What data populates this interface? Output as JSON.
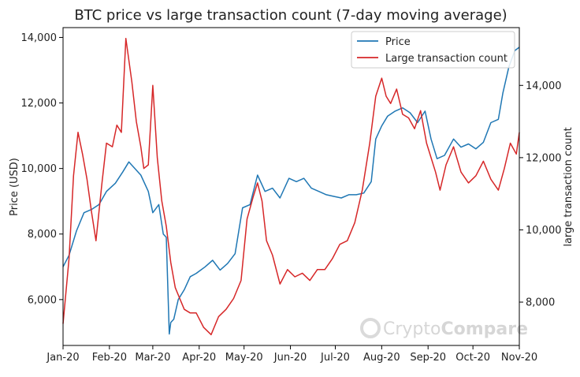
{
  "chart_data": {
    "type": "line",
    "title": "BTC price vs large transaction count (7-day moving average)",
    "ylabel": "Price (USD)",
    "y2label": "large transaction count",
    "ylim": [
      4600,
      14300
    ],
    "y2lim": [
      6800,
      15600
    ],
    "x_ticks": [
      "Jan-20",
      "Feb-20",
      "Mar-20",
      "Apr-20",
      "May-20",
      "Jun-20",
      "Jul-20",
      "Aug-20",
      "Sep-20",
      "Oct-20",
      "Nov-20"
    ],
    "y_ticks": [
      6000,
      8000,
      10000,
      12000,
      14000
    ],
    "y_tick_labels": [
      "6,000",
      "8,000",
      "10,000",
      "12,000",
      "14,000"
    ],
    "y2_ticks": [
      8000,
      10000,
      12000,
      14000
    ],
    "y2_tick_labels": [
      "8,000",
      "10,000",
      "12,000",
      "14,000"
    ],
    "grid": false,
    "legend_position": "top-right",
    "series": [
      {
        "name": "Price",
        "axis": "left",
        "color": "#1f77b4",
        "x": [
          "2020-01-01",
          "2020-01-05",
          "2020-01-10",
          "2020-01-15",
          "2020-01-20",
          "2020-01-25",
          "2020-01-30",
          "2020-02-05",
          "2020-02-10",
          "2020-02-14",
          "2020-02-18",
          "2020-02-22",
          "2020-02-27",
          "2020-03-01",
          "2020-03-05",
          "2020-03-08",
          "2020-03-10",
          "2020-03-12",
          "2020-03-13",
          "2020-03-15",
          "2020-03-18",
          "2020-03-22",
          "2020-03-26",
          "2020-03-30",
          "2020-04-05",
          "2020-04-10",
          "2020-04-15",
          "2020-04-20",
          "2020-04-25",
          "2020-04-30",
          "2020-05-05",
          "2020-05-10",
          "2020-05-15",
          "2020-05-20",
          "2020-05-25",
          "2020-05-31",
          "2020-06-05",
          "2020-06-10",
          "2020-06-15",
          "2020-06-20",
          "2020-06-25",
          "2020-06-30",
          "2020-07-05",
          "2020-07-10",
          "2020-07-15",
          "2020-07-20",
          "2020-07-25",
          "2020-07-28",
          "2020-08-01",
          "2020-08-05",
          "2020-08-10",
          "2020-08-15",
          "2020-08-20",
          "2020-08-25",
          "2020-08-30",
          "2020-09-03",
          "2020-09-07",
          "2020-09-12",
          "2020-09-18",
          "2020-09-23",
          "2020-09-28",
          "2020-10-03",
          "2020-10-08",
          "2020-10-13",
          "2020-10-18",
          "2020-10-21",
          "2020-10-25",
          "2020-10-29",
          "2020-11-01"
        ],
        "y": [
          7000,
          7350,
          8100,
          8650,
          8750,
          8900,
          9300,
          9550,
          9900,
          10200,
          10000,
          9800,
          9300,
          8650,
          8900,
          8000,
          7900,
          4950,
          5300,
          5400,
          6000,
          6300,
          6700,
          6800,
          7000,
          7200,
          6900,
          7100,
          7400,
          8800,
          8900,
          9800,
          9300,
          9400,
          9100,
          9700,
          9600,
          9700,
          9400,
          9300,
          9200,
          9150,
          9100,
          9200,
          9200,
          9250,
          9600,
          10900,
          11300,
          11600,
          11750,
          11850,
          11700,
          11400,
          11750,
          10900,
          10300,
          10400,
          10900,
          10650,
          10750,
          10600,
          10800,
          11400,
          11500,
          12300,
          13100,
          13600,
          13700
        ]
      },
      {
        "name": "Large transaction count",
        "axis": "right",
        "color": "#d62728",
        "x": [
          "2020-01-01",
          "2020-01-05",
          "2020-01-08",
          "2020-01-11",
          "2020-01-14",
          "2020-01-17",
          "2020-01-20",
          "2020-01-23",
          "2020-01-27",
          "2020-01-30",
          "2020-02-03",
          "2020-02-06",
          "2020-02-09",
          "2020-02-12",
          "2020-02-16",
          "2020-02-19",
          "2020-02-22",
          "2020-02-24",
          "2020-02-27",
          "2020-03-01",
          "2020-03-04",
          "2020-03-07",
          "2020-03-10",
          "2020-03-13",
          "2020-03-16",
          "2020-03-19",
          "2020-03-22",
          "2020-03-26",
          "2020-03-30",
          "2020-04-04",
          "2020-04-09",
          "2020-04-14",
          "2020-04-19",
          "2020-04-24",
          "2020-04-29",
          "2020-05-03",
          "2020-05-07",
          "2020-05-10",
          "2020-05-13",
          "2020-05-16",
          "2020-05-20",
          "2020-05-25",
          "2020-05-30",
          "2020-06-04",
          "2020-06-09",
          "2020-06-14",
          "2020-06-19",
          "2020-06-24",
          "2020-06-29",
          "2020-07-04",
          "2020-07-09",
          "2020-07-14",
          "2020-07-19",
          "2020-07-24",
          "2020-07-28",
          "2020-08-01",
          "2020-08-04",
          "2020-08-07",
          "2020-08-11",
          "2020-08-15",
          "2020-08-19",
          "2020-08-23",
          "2020-08-27",
          "2020-08-31",
          "2020-09-03",
          "2020-09-06",
          "2020-09-09",
          "2020-09-13",
          "2020-09-18",
          "2020-09-23",
          "2020-09-28",
          "2020-10-03",
          "2020-10-08",
          "2020-10-13",
          "2020-10-18",
          "2020-10-22",
          "2020-10-26",
          "2020-10-30",
          "2020-11-01"
        ],
        "y": [
          7400,
          9200,
          11500,
          12700,
          12100,
          11400,
          10500,
          9700,
          11300,
          12400,
          12300,
          12900,
          12700,
          15300,
          14100,
          13000,
          12300,
          11700,
          11800,
          14000,
          12000,
          10800,
          10100,
          9100,
          8400,
          8100,
          7800,
          7700,
          7700,
          7300,
          7100,
          7600,
          7800,
          8100,
          8600,
          10300,
          10900,
          11300,
          10800,
          9700,
          9300,
          8500,
          8900,
          8700,
          8800,
          8600,
          8900,
          8900,
          9200,
          9600,
          9700,
          10200,
          11100,
          12400,
          13700,
          14200,
          13700,
          13500,
          13900,
          13200,
          13100,
          12800,
          13300,
          12400,
          12000,
          11600,
          11100,
          11800,
          12300,
          11600,
          11300,
          11500,
          11900,
          11400,
          11100,
          11700,
          12400,
          12100,
          12700
        ]
      }
    ]
  },
  "watermark": {
    "text_light": "Crypto",
    "text_bold": "Compare",
    "icon": "cryptocompare-logo"
  }
}
